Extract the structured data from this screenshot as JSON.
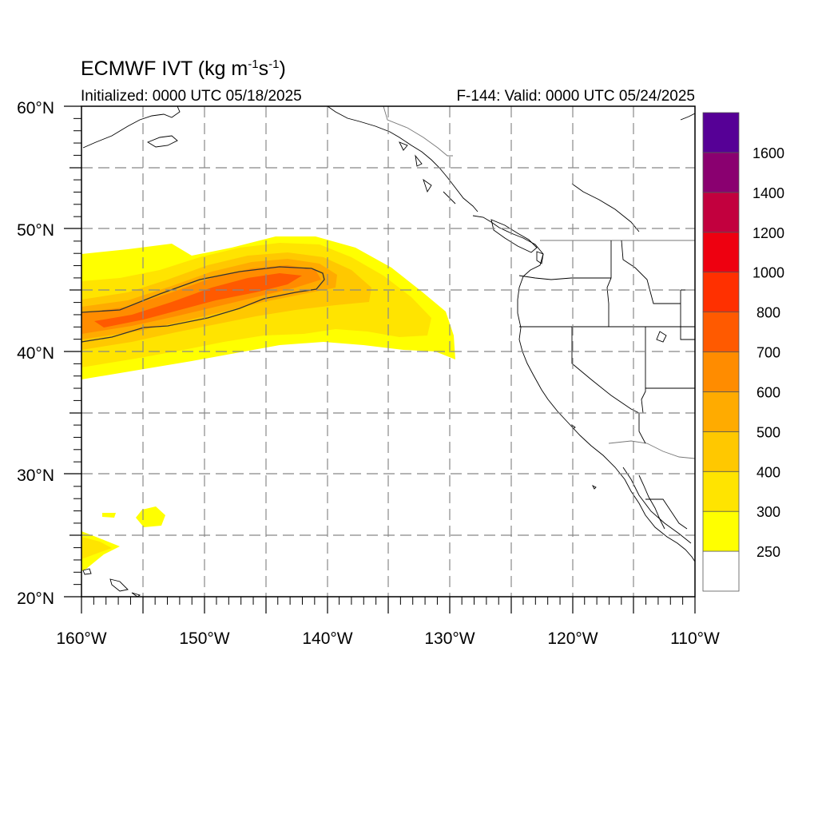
{
  "header": {
    "title_main": "ECMWF IVT (kg m",
    "title_exp1": "-1",
    "title_mid": "s",
    "title_exp2": "-1",
    "title_end": ")",
    "initialized": "Initialized: 0000 UTC 05/18/2025",
    "valid": "F-144: Valid: 0000 UTC 05/24/2025"
  },
  "map": {
    "lon_range": [
      -160,
      -110
    ],
    "lat_range": [
      20,
      60
    ],
    "lon_labels": [
      "160°W",
      "150°W",
      "140°W",
      "130°W",
      "120°W",
      "110°W"
    ],
    "lat_labels": [
      "20°N",
      "30°N",
      "40°N",
      "50°N",
      "60°N"
    ],
    "grid_lines": "dashed every 5°"
  },
  "colorbar": {
    "labels": [
      "250",
      "300",
      "400",
      "500",
      "600",
      "700",
      "800",
      "1000",
      "1200",
      "1400",
      "1600"
    ],
    "colors": [
      "#ffffff",
      "#ffff00",
      "#ffe400",
      "#ffc800",
      "#ffab00",
      "#ff8c00",
      "#ff5a00",
      "#ff3000",
      "#ee0010",
      "#c2003e",
      "#8a0070",
      "#560096"
    ]
  },
  "ivt_regions": {
    "fill_250": "#ffff00",
    "fill_300": "#ffe400",
    "fill_400": "#ffc800",
    "fill_500": "#ffab00",
    "fill_600": "#ff8c00",
    "fill_700": "#ff5a00"
  }
}
